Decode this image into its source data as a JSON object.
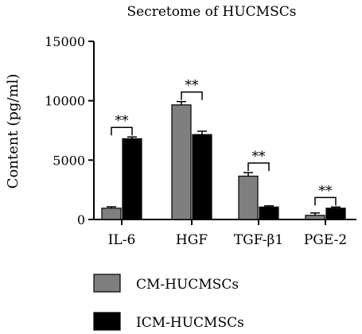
{
  "chart_data": {
    "type": "bar",
    "title": "Secretome of HUCMSCs",
    "xlabel": "",
    "ylabel": "Content (pg/ml)",
    "ylim": [
      0,
      15000
    ],
    "yticks": [
      "0",
      "5000",
      "10000",
      "15000"
    ],
    "categories": [
      "IL-6",
      "HGF",
      "TGF-β1",
      "PGE-2"
    ],
    "series": [
      {
        "name": "CM-HUCMSCs",
        "color": "#7f7f7f",
        "values": [
          950,
          9650,
          3650,
          350
        ],
        "errors": [
          120,
          280,
          300,
          200
        ]
      },
      {
        "name": "ICM-HUCMSCs",
        "color": "#000000",
        "values": [
          6800,
          7150,
          1050,
          950
        ],
        "errors": [
          150,
          280,
          100,
          100
        ]
      }
    ],
    "significance": [
      "**",
      "**",
      "**",
      "**"
    ],
    "grid": false,
    "legend_position": "bottom"
  }
}
